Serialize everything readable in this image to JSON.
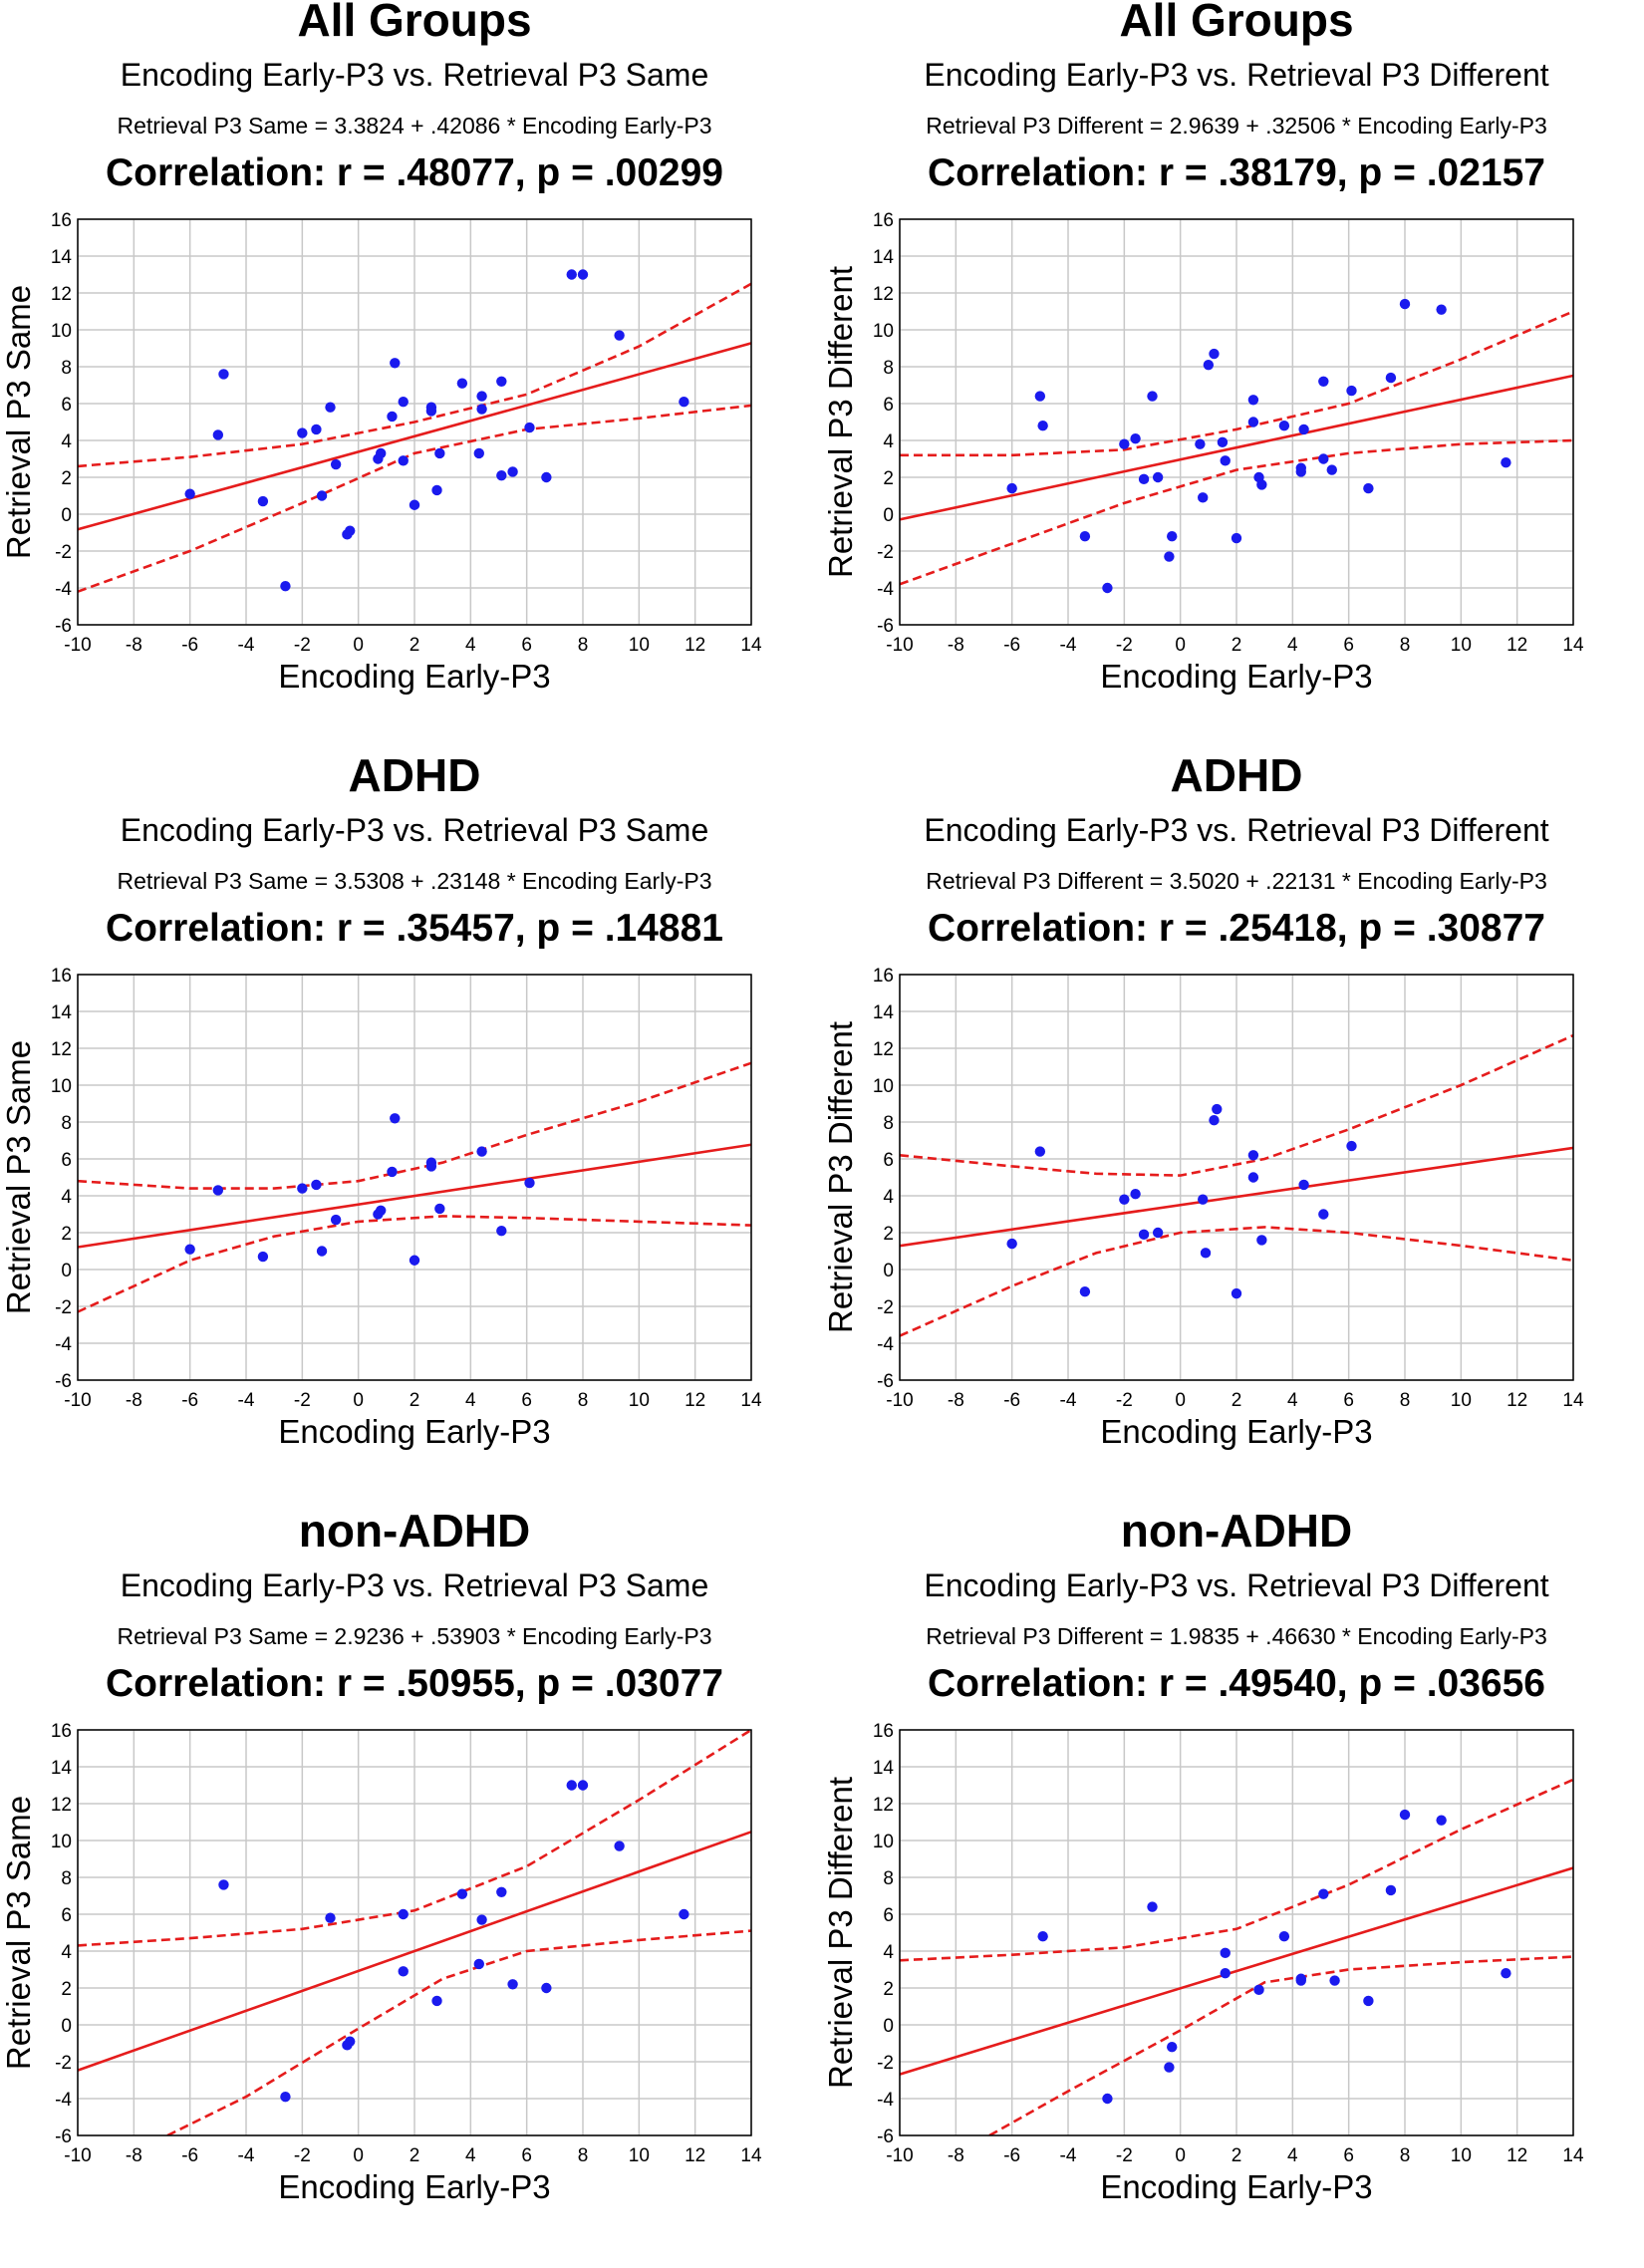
{
  "figure": {
    "colors": {
      "point": "#1a1aee",
      "fit": "#e51c1c",
      "grid": "#c8c8c8",
      "axis": "#000000"
    }
  },
  "chart_data": [
    {
      "type": "scatter",
      "group_title": "All Groups",
      "subtitle": "Encoding Early-P3 vs. Retrieval P3 Same",
      "equation": "Retrieval P3 Same = 3.3824 + .42086 * Encoding Early-P3",
      "correlation": "Correlation: r = .48077, p = .00299",
      "xlabel": "Encoding Early-P3",
      "ylabel": "Retrieval P3 Same",
      "xlim": [
        -10,
        14
      ],
      "ylim": [
        -6,
        16
      ],
      "xticks": [
        "-10",
        "-8",
        "-6",
        "-4",
        "-2",
        "0",
        "2",
        "4",
        "6",
        "8",
        "10",
        "12",
        "14"
      ],
      "yticks": [
        "-6",
        "-4",
        "-2",
        "0",
        "2",
        "4",
        "6",
        "8",
        "10",
        "12",
        "14",
        "16"
      ],
      "fit": {
        "intercept": 3.3824,
        "slope": 0.42086
      },
      "ci_upper": [
        [
          -10,
          2.6
        ],
        [
          -6,
          3.1
        ],
        [
          -2,
          3.8
        ],
        [
          2,
          5.0
        ],
        [
          6,
          6.5
        ],
        [
          10,
          9.1
        ],
        [
          14,
          12.5
        ]
      ],
      "ci_lower": [
        [
          -10,
          -4.2
        ],
        [
          -6,
          -2.0
        ],
        [
          -2,
          0.6
        ],
        [
          2,
          3.3
        ],
        [
          6,
          4.6
        ],
        [
          10,
          5.2
        ],
        [
          14,
          5.9
        ]
      ],
      "points": [
        [
          -6.0,
          1.1
        ],
        [
          -5.0,
          4.3
        ],
        [
          -4.8,
          7.6
        ],
        [
          -3.4,
          0.7
        ],
        [
          -2.6,
          -3.9
        ],
        [
          -2.0,
          4.4
        ],
        [
          -1.5,
          4.6
        ],
        [
          -1.3,
          1.0
        ],
        [
          -1.0,
          5.8
        ],
        [
          -0.8,
          2.7
        ],
        [
          -0.4,
          -1.1
        ],
        [
          -0.3,
          -0.9
        ],
        [
          0.7,
          3.0
        ],
        [
          0.8,
          3.3
        ],
        [
          1.2,
          5.3
        ],
        [
          1.3,
          8.2
        ],
        [
          1.6,
          6.1
        ],
        [
          1.6,
          2.9
        ],
        [
          2.0,
          0.5
        ],
        [
          2.6,
          5.8
        ],
        [
          2.6,
          5.6
        ],
        [
          2.8,
          1.3
        ],
        [
          2.9,
          3.3
        ],
        [
          3.7,
          7.1
        ],
        [
          4.3,
          3.3
        ],
        [
          4.4,
          6.4
        ],
        [
          4.4,
          5.7
        ],
        [
          5.1,
          7.2
        ],
        [
          5.1,
          2.1
        ],
        [
          5.5,
          2.3
        ],
        [
          6.1,
          4.7
        ],
        [
          6.7,
          2.0
        ],
        [
          7.6,
          13.0
        ],
        [
          8.0,
          13.0
        ],
        [
          9.3,
          9.7
        ],
        [
          11.6,
          6.1
        ]
      ]
    },
    {
      "type": "scatter",
      "group_title": "All Groups",
      "subtitle": "Encoding Early-P3 vs. Retrieval P3 Different",
      "equation": "Retrieval P3 Different = 2.9639 + .32506 * Encoding Early-P3",
      "correlation": "Correlation: r = .38179, p = .02157",
      "xlabel": "Encoding Early-P3",
      "ylabel": "Retrieval P3 Different",
      "xlim": [
        -10,
        14
      ],
      "ylim": [
        -6,
        16
      ],
      "xticks": [
        "-10",
        "-8",
        "-6",
        "-4",
        "-2",
        "0",
        "2",
        "4",
        "6",
        "8",
        "10",
        "12",
        "14"
      ],
      "yticks": [
        "-6",
        "-4",
        "-2",
        "0",
        "2",
        "4",
        "6",
        "8",
        "10",
        "12",
        "14",
        "16"
      ],
      "fit": {
        "intercept": 2.9639,
        "slope": 0.32506
      },
      "ci_upper": [
        [
          -10,
          3.2
        ],
        [
          -6,
          3.2
        ],
        [
          -2,
          3.5
        ],
        [
          2,
          4.6
        ],
        [
          6,
          6.0
        ],
        [
          10,
          8.4
        ],
        [
          14,
          11.0
        ]
      ],
      "ci_lower": [
        [
          -10,
          -3.8
        ],
        [
          -6,
          -1.6
        ],
        [
          -2,
          0.6
        ],
        [
          2,
          2.4
        ],
        [
          6,
          3.3
        ],
        [
          10,
          3.8
        ],
        [
          14,
          4.0
        ]
      ],
      "points": [
        [
          -6.0,
          1.4
        ],
        [
          -5.0,
          6.4
        ],
        [
          -4.9,
          4.8
        ],
        [
          -3.4,
          -1.2
        ],
        [
          -2.6,
          -4.0
        ],
        [
          -2.0,
          3.8
        ],
        [
          -1.6,
          4.1
        ],
        [
          -1.3,
          1.9
        ],
        [
          -1.0,
          6.4
        ],
        [
          -0.8,
          2.0
        ],
        [
          -0.4,
          -2.3
        ],
        [
          -0.3,
          -1.2
        ],
        [
          0.7,
          3.8
        ],
        [
          0.8,
          0.9
        ],
        [
          1.0,
          8.1
        ],
        [
          1.2,
          8.7
        ],
        [
          1.5,
          3.9
        ],
        [
          1.6,
          2.9
        ],
        [
          2.0,
          -1.3
        ],
        [
          2.6,
          6.2
        ],
        [
          2.6,
          5.0
        ],
        [
          2.8,
          2.0
        ],
        [
          2.9,
          1.6
        ],
        [
          3.7,
          4.8
        ],
        [
          4.3,
          2.5
        ],
        [
          4.3,
          2.3
        ],
        [
          4.4,
          4.6
        ],
        [
          5.1,
          7.2
        ],
        [
          5.1,
          3.0
        ],
        [
          5.4,
          2.4
        ],
        [
          6.1,
          6.7
        ],
        [
          6.7,
          1.4
        ],
        [
          7.5,
          7.4
        ],
        [
          8.0,
          11.4
        ],
        [
          9.3,
          11.1
        ],
        [
          11.6,
          2.8
        ]
      ]
    },
    {
      "type": "scatter",
      "group_title": "ADHD",
      "subtitle": "Encoding Early-P3 vs. Retrieval P3 Same",
      "equation": "Retrieval P3 Same = 3.5308 + .23148 * Encoding Early-P3",
      "correlation": "Correlation: r = .35457, p = .14881",
      "xlabel": "Encoding Early-P3",
      "ylabel": "Retrieval P3 Same",
      "xlim": [
        -10,
        14
      ],
      "ylim": [
        -6,
        16
      ],
      "xticks": [
        "-10",
        "-8",
        "-6",
        "-4",
        "-2",
        "0",
        "2",
        "4",
        "6",
        "8",
        "10",
        "12",
        "14"
      ],
      "yticks": [
        "-6",
        "-4",
        "-2",
        "0",
        "2",
        "4",
        "6",
        "8",
        "10",
        "12",
        "14",
        "16"
      ],
      "fit": {
        "intercept": 3.5308,
        "slope": 0.23148
      },
      "ci_upper": [
        [
          -10,
          4.8
        ],
        [
          -6,
          4.4
        ],
        [
          -3,
          4.4
        ],
        [
          0,
          4.8
        ],
        [
          3,
          5.8
        ],
        [
          6,
          7.3
        ],
        [
          10,
          9.1
        ],
        [
          14,
          11.2
        ]
      ],
      "ci_lower": [
        [
          -10,
          -2.3
        ],
        [
          -6,
          0.5
        ],
        [
          -3,
          1.8
        ],
        [
          0,
          2.6
        ],
        [
          3,
          2.9
        ],
        [
          6,
          2.8
        ],
        [
          10,
          2.6
        ],
        [
          14,
          2.4
        ]
      ],
      "points": [
        [
          -6.0,
          1.1
        ],
        [
          -5.0,
          4.3
        ],
        [
          -3.4,
          0.7
        ],
        [
          -2.0,
          4.4
        ],
        [
          -1.5,
          4.6
        ],
        [
          -1.3,
          1.0
        ],
        [
          -0.8,
          2.7
        ],
        [
          0.7,
          3.0
        ],
        [
          0.8,
          3.2
        ],
        [
          1.2,
          5.3
        ],
        [
          1.3,
          8.2
        ],
        [
          2.0,
          0.5
        ],
        [
          2.6,
          5.8
        ],
        [
          2.6,
          5.6
        ],
        [
          2.9,
          3.3
        ],
        [
          4.4,
          6.4
        ],
        [
          5.1,
          2.1
        ],
        [
          6.1,
          4.7
        ]
      ]
    },
    {
      "type": "scatter",
      "group_title": "ADHD",
      "subtitle": "Encoding Early-P3 vs. Retrieval P3 Different",
      "equation": "Retrieval P3 Different = 3.5020 + .22131 * Encoding Early-P3",
      "correlation": "Correlation: r = .25418, p = .30877",
      "xlabel": "Encoding Early-P3",
      "ylabel": "Retrieval P3 Different",
      "xlim": [
        -10,
        14
      ],
      "ylim": [
        -6,
        16
      ],
      "xticks": [
        "-10",
        "-8",
        "-6",
        "-4",
        "-2",
        "0",
        "2",
        "4",
        "6",
        "8",
        "10",
        "12",
        "14"
      ],
      "yticks": [
        "-6",
        "-4",
        "-2",
        "0",
        "2",
        "4",
        "6",
        "8",
        "10",
        "12",
        "14",
        "16"
      ],
      "fit": {
        "intercept": 3.502,
        "slope": 0.22131
      },
      "ci_upper": [
        [
          -10,
          6.2
        ],
        [
          -6,
          5.6
        ],
        [
          -3,
          5.2
        ],
        [
          0,
          5.1
        ],
        [
          3,
          6.0
        ],
        [
          6,
          7.6
        ],
        [
          10,
          10.0
        ],
        [
          14,
          12.7
        ]
      ],
      "ci_lower": [
        [
          -10,
          -3.6
        ],
        [
          -6,
          -0.9
        ],
        [
          -3,
          0.9
        ],
        [
          0,
          2.0
        ],
        [
          3,
          2.3
        ],
        [
          6,
          2.0
        ],
        [
          10,
          1.3
        ],
        [
          14,
          0.5
        ]
      ],
      "points": [
        [
          -6.0,
          1.4
        ],
        [
          -5.0,
          6.4
        ],
        [
          -3.4,
          -1.2
        ],
        [
          -2.0,
          3.8
        ],
        [
          -1.6,
          4.1
        ],
        [
          -1.3,
          1.9
        ],
        [
          -0.8,
          2.0
        ],
        [
          0.8,
          3.8
        ],
        [
          0.9,
          0.9
        ],
        [
          1.2,
          8.1
        ],
        [
          1.3,
          8.7
        ],
        [
          2.0,
          -1.3
        ],
        [
          2.6,
          6.2
        ],
        [
          2.6,
          5.0
        ],
        [
          2.9,
          1.6
        ],
        [
          4.4,
          4.6
        ],
        [
          5.1,
          3.0
        ],
        [
          6.1,
          6.7
        ]
      ]
    },
    {
      "type": "scatter",
      "group_title": "non-ADHD",
      "subtitle": "Encoding Early-P3  vs. Retrieval P3 Same",
      "equation": "Retrieval P3 Same = 2.9236 + .53903 * Encoding Early-P3",
      "correlation": "Correlation: r = .50955, p = .03077",
      "xlabel": "Encoding Early-P3",
      "ylabel": "Retrieval P3 Same",
      "xlim": [
        -10,
        14
      ],
      "ylim": [
        -6,
        16
      ],
      "xticks": [
        "-10",
        "-8",
        "-6",
        "-4",
        "-2",
        "0",
        "2",
        "4",
        "6",
        "8",
        "10",
        "12",
        "14"
      ],
      "yticks": [
        "-6",
        "-4",
        "-2",
        "0",
        "2",
        "4",
        "6",
        "8",
        "10",
        "12",
        "14",
        "16"
      ],
      "fit": {
        "intercept": 2.9236,
        "slope": 0.53903
      },
      "ci_upper": [
        [
          -10,
          4.3
        ],
        [
          -6,
          4.7
        ],
        [
          -2,
          5.2
        ],
        [
          2,
          6.2
        ],
        [
          6,
          8.6
        ],
        [
          10,
          12.2
        ],
        [
          14,
          16.0
        ]
      ],
      "ci_lower": [
        [
          -6.8,
          -6.0
        ],
        [
          -4,
          -3.9
        ],
        [
          0,
          -0.2
        ],
        [
          3,
          2.5
        ],
        [
          6,
          4.0
        ],
        [
          10,
          4.6
        ],
        [
          14,
          5.1
        ]
      ],
      "points": [
        [
          -4.8,
          7.6
        ],
        [
          -2.6,
          -3.9
        ],
        [
          -1.0,
          5.8
        ],
        [
          -0.4,
          -1.1
        ],
        [
          -0.3,
          -0.9
        ],
        [
          1.6,
          6.0
        ],
        [
          1.6,
          2.9
        ],
        [
          2.8,
          1.3
        ],
        [
          3.7,
          7.1
        ],
        [
          4.3,
          3.3
        ],
        [
          4.4,
          5.7
        ],
        [
          5.1,
          7.2
        ],
        [
          5.5,
          2.2
        ],
        [
          6.7,
          2.0
        ],
        [
          7.6,
          13.0
        ],
        [
          8.0,
          13.0
        ],
        [
          9.3,
          9.7
        ],
        [
          11.6,
          6.0
        ]
      ]
    },
    {
      "type": "scatter",
      "group_title": "non-ADHD",
      "subtitle": "Encoding Early-P3 vs. Retrieval P3 Different",
      "equation": "Retrieval P3 Different = 1.9835 + .46630 * Encoding Early-P3",
      "correlation": "Correlation: r = .49540, p = .03656",
      "xlabel": "Encoding Early-P3",
      "ylabel": "Retrieval P3 Different",
      "xlim": [
        -10,
        14
      ],
      "ylim": [
        -6,
        16
      ],
      "xticks": [
        "-10",
        "-8",
        "-6",
        "-4",
        "-2",
        "0",
        "2",
        "4",
        "6",
        "8",
        "10",
        "12",
        "14"
      ],
      "yticks": [
        "-6",
        "-4",
        "-2",
        "0",
        "2",
        "4",
        "6",
        "8",
        "10",
        "12",
        "14",
        "16"
      ],
      "fit": {
        "intercept": 1.9835,
        "slope": 0.4663
      },
      "ci_upper": [
        [
          -10,
          3.5
        ],
        [
          -6,
          3.8
        ],
        [
          -2,
          4.2
        ],
        [
          2,
          5.2
        ],
        [
          6,
          7.6
        ],
        [
          10,
          10.6
        ],
        [
          14,
          13.3
        ]
      ],
      "ci_lower": [
        [
          -6.8,
          -6.0
        ],
        [
          -4,
          -3.6
        ],
        [
          0,
          -0.3
        ],
        [
          3,
          2.3
        ],
        [
          6,
          3.0
        ],
        [
          10,
          3.4
        ],
        [
          14,
          3.7
        ]
      ],
      "points": [
        [
          -4.9,
          4.8
        ],
        [
          -2.6,
          -4.0
        ],
        [
          -1.0,
          6.4
        ],
        [
          -0.4,
          -2.3
        ],
        [
          -0.3,
          -1.2
        ],
        [
          1.6,
          3.9
        ],
        [
          1.6,
          2.8
        ],
        [
          2.8,
          1.9
        ],
        [
          3.7,
          4.8
        ],
        [
          4.3,
          2.5
        ],
        [
          4.3,
          2.4
        ],
        [
          5.1,
          7.1
        ],
        [
          5.5,
          2.4
        ],
        [
          6.7,
          1.3
        ],
        [
          7.5,
          7.3
        ],
        [
          8.0,
          11.4
        ],
        [
          9.3,
          11.1
        ],
        [
          11.6,
          2.8
        ]
      ]
    }
  ]
}
